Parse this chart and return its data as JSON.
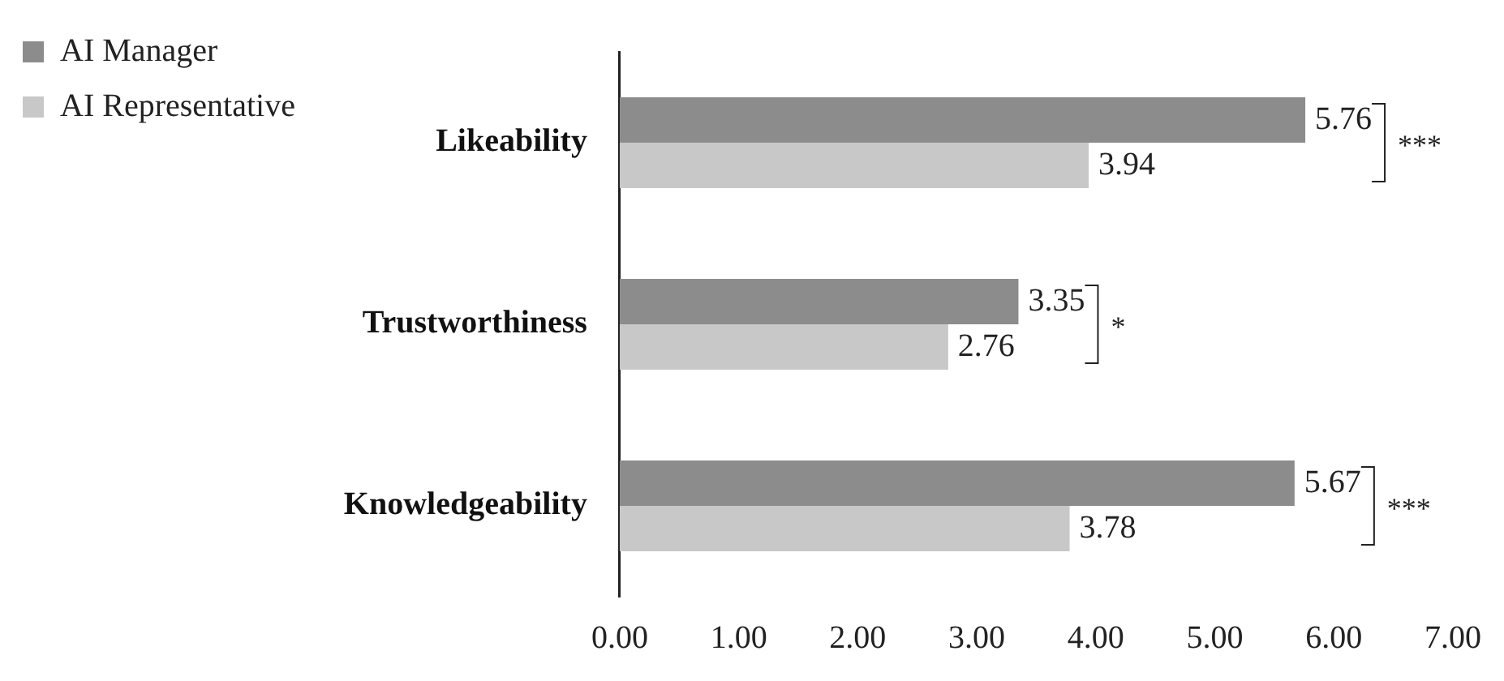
{
  "chart_data": {
    "type": "bar",
    "orientation": "horizontal",
    "categories": [
      "Likeability",
      "Trustworthiness",
      "Knowledgeability"
    ],
    "series": [
      {
        "name": "AI Manager",
        "color": "#8c8c8c",
        "values": [
          5.76,
          3.35,
          5.67
        ]
      },
      {
        "name": "AI Representative",
        "color": "#c8c8c8",
        "values": [
          3.94,
          2.76,
          3.78
        ]
      }
    ],
    "xlim": [
      0,
      7
    ],
    "xticks": [
      {
        "value": 0,
        "label": "0.00"
      },
      {
        "value": 1,
        "label": "1.00"
      },
      {
        "value": 2,
        "label": "2.00"
      },
      {
        "value": 3,
        "label": "3.00"
      },
      {
        "value": 4,
        "label": "4.00"
      },
      {
        "value": 5,
        "label": "5.00"
      },
      {
        "value": 6,
        "label": "6.00"
      },
      {
        "value": 7,
        "label": "7.00"
      }
    ],
    "data_labels": true,
    "grid": false,
    "legend": "top left",
    "annotations": [
      "***",
      "*",
      "***"
    ]
  }
}
